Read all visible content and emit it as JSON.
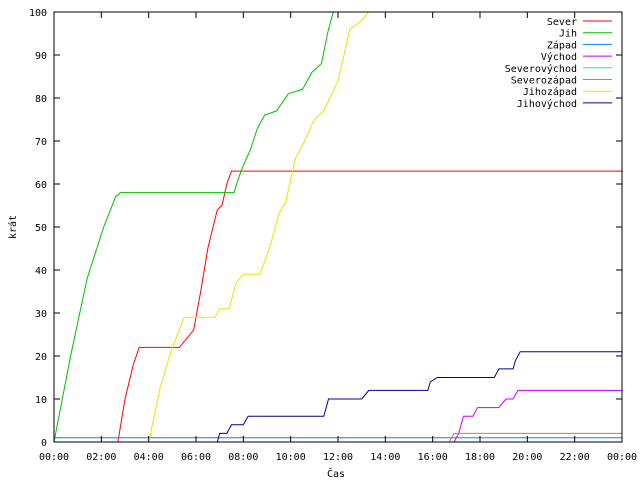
{
  "chart_data": {
    "type": "line",
    "xlabel": "Čas",
    "ylabel": "krát",
    "x_range_hours": [
      0,
      24
    ],
    "ylim": [
      0,
      100
    ],
    "x_ticks": [
      "00:00",
      "02:00",
      "04:00",
      "06:00",
      "08:00",
      "10:00",
      "12:00",
      "14:00",
      "16:00",
      "18:00",
      "20:00",
      "22:00",
      "00:00"
    ],
    "y_ticks": [
      0,
      10,
      20,
      30,
      40,
      50,
      60,
      70,
      80,
      90,
      100
    ],
    "grid": false,
    "legend_position": "top-right",
    "series": [
      {
        "name": "Sever",
        "color": "#ff0000",
        "points": [
          [
            0,
            0
          ],
          [
            2.7,
            0
          ],
          [
            3.0,
            10
          ],
          [
            3.35,
            18
          ],
          [
            3.6,
            22
          ],
          [
            4.9,
            22
          ],
          [
            5.3,
            22
          ],
          [
            5.9,
            26
          ],
          [
            6.2,
            35
          ],
          [
            6.5,
            45
          ],
          [
            6.9,
            54
          ],
          [
            7.1,
            55
          ],
          [
            7.3,
            60
          ],
          [
            7.5,
            63
          ],
          [
            24,
            63
          ]
        ]
      },
      {
        "name": "Jih",
        "color": "#00c000",
        "points": [
          [
            0,
            0
          ],
          [
            0.7,
            20
          ],
          [
            1.4,
            38
          ],
          [
            2.1,
            50
          ],
          [
            2.6,
            57
          ],
          [
            2.8,
            58
          ],
          [
            7.6,
            58
          ],
          [
            7.9,
            63
          ],
          [
            8.3,
            68
          ],
          [
            8.6,
            73
          ],
          [
            8.9,
            76
          ],
          [
            9.4,
            77
          ],
          [
            9.9,
            81
          ],
          [
            10.5,
            82
          ],
          [
            10.9,
            86
          ],
          [
            11.3,
            88
          ],
          [
            11.6,
            96
          ],
          [
            11.8,
            100
          ]
        ]
      },
      {
        "name": "Západ",
        "color": "#0080ff",
        "points": [
          [
            0,
            1
          ],
          [
            24,
            1
          ]
        ]
      },
      {
        "name": "Východ",
        "color": "#c000ff",
        "points": [
          [
            0,
            0
          ],
          [
            16.9,
            0
          ],
          [
            17.1,
            2
          ],
          [
            17.3,
            6
          ],
          [
            17.7,
            6
          ],
          [
            17.9,
            8
          ],
          [
            18.8,
            8
          ],
          [
            19.1,
            10
          ],
          [
            19.4,
            10
          ],
          [
            19.6,
            12
          ],
          [
            24,
            12
          ]
        ]
      },
      {
        "name": "Severovýchod",
        "color": "#00eeee",
        "points": [
          [
            0,
            0
          ],
          [
            24,
            0
          ]
        ]
      },
      {
        "name": "Severozápad",
        "color": "#c08040",
        "points": [
          [
            0,
            0
          ],
          [
            16.7,
            0
          ],
          [
            16.9,
            2
          ],
          [
            24,
            2
          ]
        ]
      },
      {
        "name": "Jihozápad",
        "color": "#f0e000",
        "points": [
          [
            0,
            0
          ],
          [
            4.0,
            0
          ],
          [
            4.5,
            13
          ],
          [
            5.0,
            22
          ],
          [
            5.5,
            29
          ],
          [
            6.8,
            29
          ],
          [
            7.0,
            31
          ],
          [
            7.4,
            31
          ],
          [
            7.7,
            37
          ],
          [
            8.0,
            39
          ],
          [
            8.7,
            39
          ],
          [
            9.1,
            45
          ],
          [
            9.5,
            53
          ],
          [
            9.8,
            56
          ],
          [
            10.2,
            66
          ],
          [
            10.5,
            69
          ],
          [
            11.0,
            75
          ],
          [
            11.4,
            77
          ],
          [
            12.0,
            84
          ],
          [
            12.5,
            96
          ],
          [
            13.0,
            98
          ],
          [
            13.3,
            100
          ]
        ]
      },
      {
        "name": "Jihovýchod",
        "color": "#0000a0",
        "points": [
          [
            0,
            0
          ],
          [
            6.9,
            0
          ],
          [
            7.0,
            2
          ],
          [
            7.3,
            2
          ],
          [
            7.5,
            4
          ],
          [
            8.0,
            4
          ],
          [
            8.2,
            6
          ],
          [
            11.4,
            6
          ],
          [
            11.5,
            8
          ],
          [
            11.6,
            10
          ],
          [
            13.0,
            10
          ],
          [
            13.3,
            12
          ],
          [
            15.8,
            12
          ],
          [
            15.9,
            14
          ],
          [
            16.2,
            15
          ],
          [
            18.6,
            15
          ],
          [
            18.8,
            17
          ],
          [
            19.4,
            17
          ],
          [
            19.5,
            19
          ],
          [
            19.7,
            21
          ],
          [
            24,
            21
          ]
        ]
      }
    ]
  }
}
